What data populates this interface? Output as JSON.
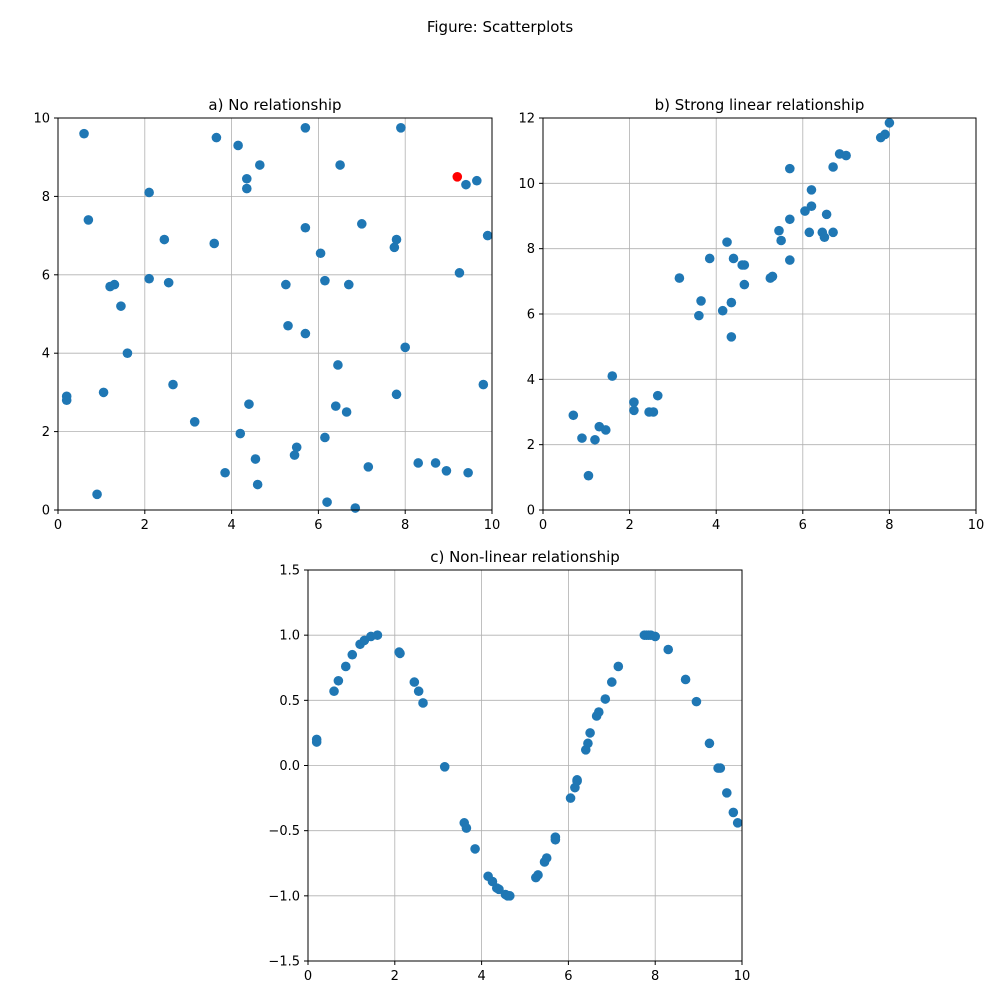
{
  "figure": {
    "suptitle": "Figure: Scatterplots"
  },
  "colors": {
    "point": "#1f77b4",
    "highlight": "#ff0000",
    "grid": "#b0b0b0",
    "axis": "#000000"
  },
  "chart_data": [
    {
      "type": "scatter",
      "title": "a) No relationship",
      "xlabel": "",
      "ylabel": "",
      "xlim": [
        0,
        10
      ],
      "ylim": [
        0,
        10
      ],
      "xticks": [
        0,
        2,
        4,
        6,
        8,
        10
      ],
      "yticks": [
        0,
        2,
        4,
        6,
        8,
        10
      ],
      "xtick_labels": [
        "0",
        "2",
        "4",
        "6",
        "8",
        "10"
      ],
      "ytick_labels": [
        "0",
        "2",
        "4",
        "6",
        "8",
        "10"
      ],
      "grid": true,
      "highlight_points": [
        [
          9.2,
          8.5
        ]
      ],
      "points": [
        [
          0.2,
          2.9
        ],
        [
          0.2,
          2.8
        ],
        [
          0.6,
          9.6
        ],
        [
          0.7,
          7.4
        ],
        [
          0.9,
          0.4
        ],
        [
          1.05,
          3.0
        ],
        [
          1.2,
          5.7
        ],
        [
          1.3,
          5.75
        ],
        [
          1.45,
          5.2
        ],
        [
          1.6,
          4.0
        ],
        [
          2.1,
          8.1
        ],
        [
          2.1,
          5.9
        ],
        [
          2.45,
          6.9
        ],
        [
          2.55,
          5.8
        ],
        [
          2.65,
          3.2
        ],
        [
          3.15,
          2.25
        ],
        [
          3.6,
          6.8
        ],
        [
          3.65,
          9.5
        ],
        [
          3.85,
          0.95
        ],
        [
          4.15,
          9.3
        ],
        [
          4.2,
          1.95
        ],
        [
          4.35,
          8.45
        ],
        [
          4.35,
          8.2
        ],
        [
          4.4,
          2.7
        ],
        [
          4.55,
          1.3
        ],
        [
          4.6,
          0.65
        ],
        [
          4.65,
          8.8
        ],
        [
          5.25,
          5.75
        ],
        [
          5.3,
          4.7
        ],
        [
          5.45,
          1.4
        ],
        [
          5.5,
          1.6
        ],
        [
          5.7,
          9.75
        ],
        [
          5.7,
          7.2
        ],
        [
          5.7,
          4.5
        ],
        [
          6.05,
          6.55
        ],
        [
          6.15,
          5.85
        ],
        [
          6.15,
          1.85
        ],
        [
          6.2,
          0.2
        ],
        [
          6.4,
          2.65
        ],
        [
          6.45,
          3.7
        ],
        [
          6.5,
          8.8
        ],
        [
          6.65,
          2.5
        ],
        [
          6.7,
          5.75
        ],
        [
          6.85,
          0.05
        ],
        [
          7.0,
          7.3
        ],
        [
          7.15,
          1.1
        ],
        [
          7.75,
          6.7
        ],
        [
          7.8,
          6.9
        ],
        [
          7.8,
          2.95
        ],
        [
          7.9,
          9.75
        ],
        [
          8.0,
          4.15
        ],
        [
          8.3,
          1.2
        ],
        [
          8.7,
          1.2
        ],
        [
          8.95,
          1.0
        ],
        [
          9.25,
          6.05
        ],
        [
          9.4,
          8.3
        ],
        [
          9.45,
          0.95
        ],
        [
          9.65,
          8.4
        ],
        [
          9.8,
          3.2
        ],
        [
          9.9,
          7.0
        ]
      ]
    },
    {
      "type": "scatter",
      "title": "b) Strong linear relationship",
      "xlabel": "",
      "ylabel": "",
      "xlim": [
        0,
        10
      ],
      "ylim": [
        0,
        12
      ],
      "xticks": [
        0,
        2,
        4,
        6,
        8,
        10
      ],
      "yticks": [
        0,
        2,
        4,
        6,
        8,
        10,
        12
      ],
      "xtick_labels": [
        "0",
        "2",
        "4",
        "6",
        "8",
        "10"
      ],
      "ytick_labels": [
        "0",
        "2",
        "4",
        "6",
        "8",
        "10",
        "12"
      ],
      "grid": true,
      "highlight_points": [],
      "points": [
        [
          0.7,
          2.9
        ],
        [
          0.9,
          2.2
        ],
        [
          1.05,
          1.05
        ],
        [
          1.2,
          2.15
        ],
        [
          1.3,
          2.55
        ],
        [
          1.45,
          2.45
        ],
        [
          1.6,
          4.1
        ],
        [
          2.1,
          3.05
        ],
        [
          2.1,
          3.3
        ],
        [
          2.45,
          3.0
        ],
        [
          2.55,
          3.0
        ],
        [
          2.65,
          3.5
        ],
        [
          3.15,
          7.1
        ],
        [
          3.6,
          5.95
        ],
        [
          3.65,
          6.4
        ],
        [
          3.85,
          7.7
        ],
        [
          4.15,
          6.1
        ],
        [
          4.25,
          8.2
        ],
        [
          4.35,
          5.3
        ],
        [
          4.35,
          6.35
        ],
        [
          4.4,
          7.7
        ],
        [
          4.6,
          7.5
        ],
        [
          4.65,
          7.5
        ],
        [
          4.65,
          6.9
        ],
        [
          5.25,
          7.1
        ],
        [
          5.3,
          7.15
        ],
        [
          5.45,
          8.55
        ],
        [
          5.5,
          8.25
        ],
        [
          5.7,
          10.45
        ],
        [
          5.7,
          8.9
        ],
        [
          5.7,
          7.65
        ],
        [
          6.05,
          9.15
        ],
        [
          6.15,
          8.5
        ],
        [
          6.2,
          9.3
        ],
        [
          6.2,
          9.8
        ],
        [
          6.45,
          8.5
        ],
        [
          6.5,
          8.35
        ],
        [
          6.55,
          9.05
        ],
        [
          6.7,
          8.5
        ],
        [
          6.7,
          10.5
        ],
        [
          6.85,
          10.9
        ],
        [
          7.0,
          10.85
        ],
        [
          7.8,
          11.4
        ],
        [
          7.9,
          11.5
        ],
        [
          8.0,
          11.85
        ]
      ]
    },
    {
      "type": "scatter",
      "title": "c) Non-linear relationship",
      "xlabel": "",
      "ylabel": "",
      "xlim": [
        0,
        10
      ],
      "ylim": [
        -1.5,
        1.5
      ],
      "xticks": [
        0,
        2,
        4,
        6,
        8,
        10
      ],
      "yticks": [
        -1.5,
        -1.0,
        -0.5,
        0.0,
        0.5,
        1.0,
        1.5
      ],
      "xtick_labels": [
        "0",
        "2",
        "4",
        "6",
        "8",
        "10"
      ],
      "ytick_labels": [
        "−1.5",
        "−1.0",
        "−0.5",
        "0.0",
        "0.5",
        "1.0",
        "1.5"
      ],
      "grid": true,
      "highlight_points": [],
      "points": [
        [
          0.2,
          0.2
        ],
        [
          0.2,
          0.18
        ],
        [
          0.6,
          0.57
        ],
        [
          0.7,
          0.65
        ],
        [
          0.87,
          0.76
        ],
        [
          1.02,
          0.85
        ],
        [
          1.2,
          0.93
        ],
        [
          1.3,
          0.96
        ],
        [
          1.45,
          0.99
        ],
        [
          1.6,
          1.0
        ],
        [
          2.1,
          0.87
        ],
        [
          2.12,
          0.86
        ],
        [
          2.45,
          0.64
        ],
        [
          2.55,
          0.57
        ],
        [
          2.65,
          0.48
        ],
        [
          3.15,
          -0.01
        ],
        [
          3.6,
          -0.44
        ],
        [
          3.65,
          -0.48
        ],
        [
          3.85,
          -0.64
        ],
        [
          4.15,
          -0.85
        ],
        [
          4.25,
          -0.89
        ],
        [
          4.35,
          -0.94
        ],
        [
          4.4,
          -0.95
        ],
        [
          4.55,
          -0.99
        ],
        [
          4.6,
          -1.0
        ],
        [
          4.65,
          -1.0
        ],
        [
          5.25,
          -0.86
        ],
        [
          5.3,
          -0.84
        ],
        [
          5.45,
          -0.74
        ],
        [
          5.5,
          -0.71
        ],
        [
          5.7,
          -0.55
        ],
        [
          5.7,
          -0.57
        ],
        [
          6.05,
          -0.25
        ],
        [
          6.15,
          -0.17
        ],
        [
          6.2,
          -0.11
        ],
        [
          6.2,
          -0.12
        ],
        [
          6.4,
          0.12
        ],
        [
          6.45,
          0.17
        ],
        [
          6.5,
          0.25
        ],
        [
          6.65,
          0.38
        ],
        [
          6.7,
          0.41
        ],
        [
          6.85,
          0.51
        ],
        [
          7.0,
          0.64
        ],
        [
          7.15,
          0.76
        ],
        [
          7.75,
          1.0
        ],
        [
          7.8,
          1.0
        ],
        [
          7.85,
          1.0
        ],
        [
          7.9,
          1.0
        ],
        [
          8.0,
          0.99
        ],
        [
          8.3,
          0.89
        ],
        [
          8.7,
          0.66
        ],
        [
          8.95,
          0.49
        ],
        [
          9.25,
          0.17
        ],
        [
          9.45,
          -0.02
        ],
        [
          9.5,
          -0.02
        ],
        [
          9.65,
          -0.21
        ],
        [
          9.8,
          -0.36
        ],
        [
          9.9,
          -0.44
        ]
      ]
    }
  ]
}
